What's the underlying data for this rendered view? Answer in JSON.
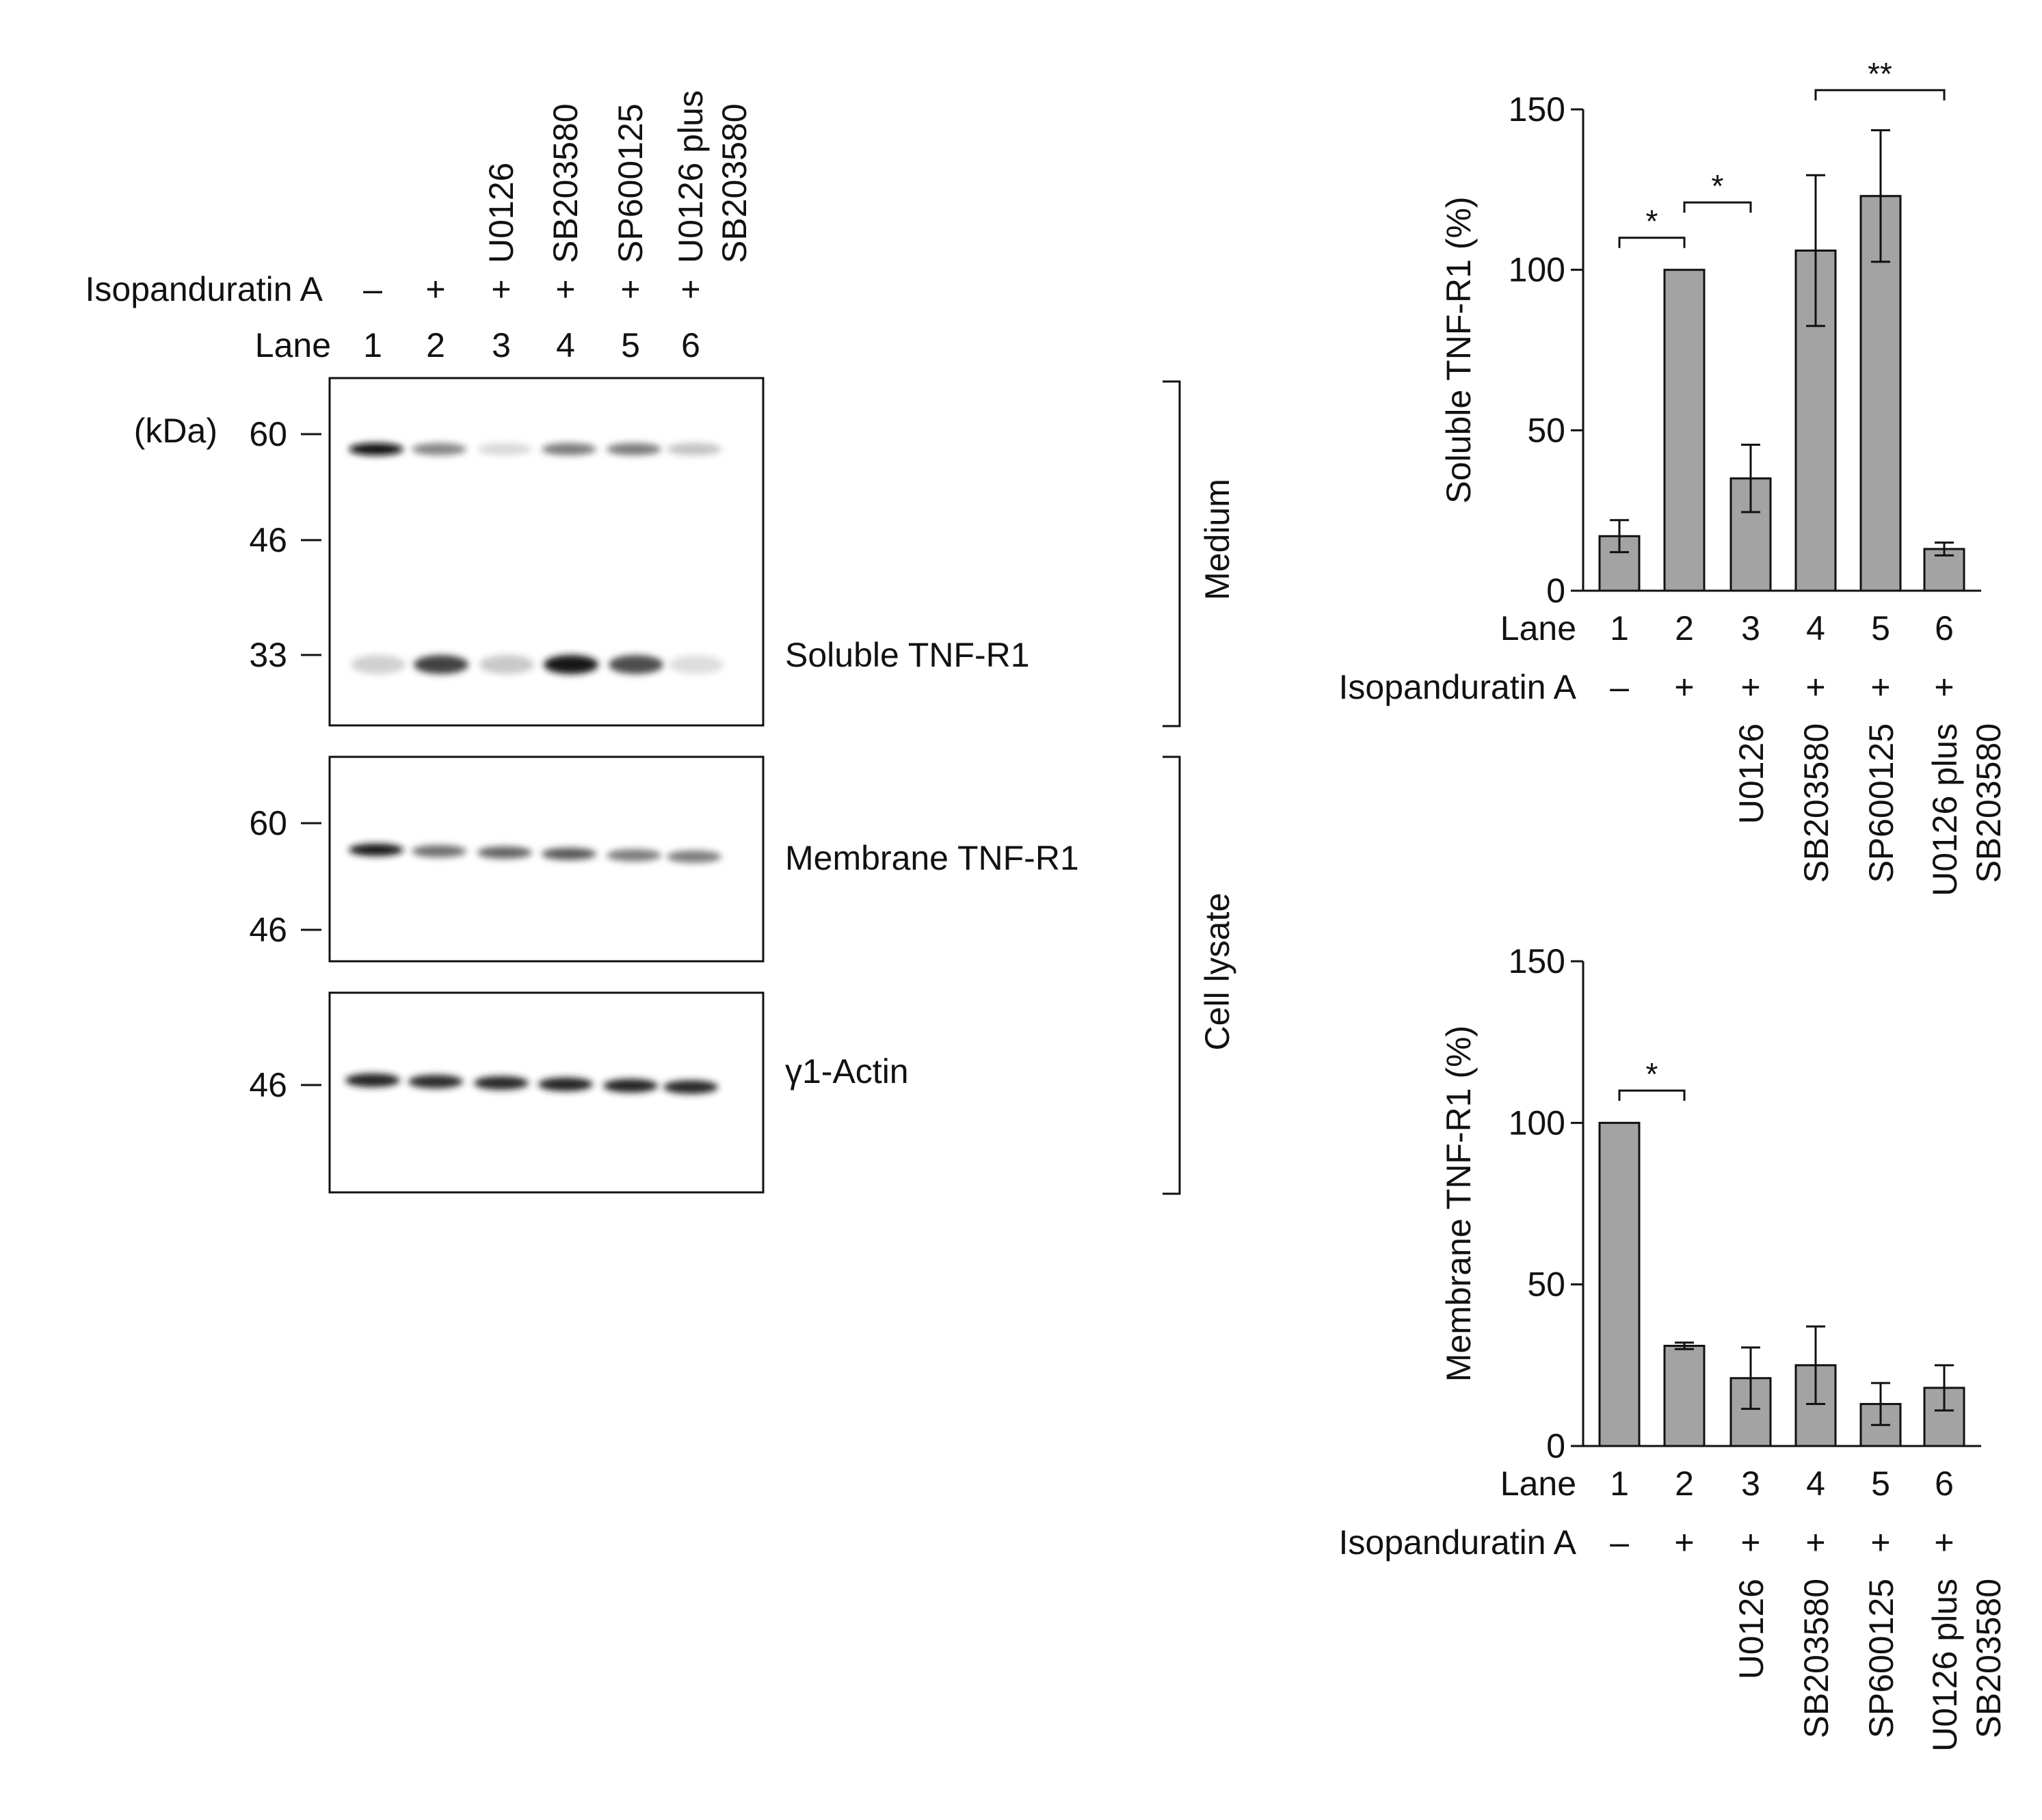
{
  "blot": {
    "treatment_label": "Isopanduratin A",
    "lane_label": "Lane",
    "kda_label": "(kDa)",
    "inhibitors": [
      "",
      "",
      "U0126",
      "SB203580",
      "SP600125",
      "U0126 plus|SB203580"
    ],
    "signs": [
      "–",
      "+",
      "+",
      "+",
      "+",
      "+"
    ],
    "lanes": [
      "1",
      "2",
      "3",
      "4",
      "5",
      "6"
    ],
    "panels": [
      {
        "label": "Soluble TNF-R1",
        "markers": [
          "60",
          "46",
          "33"
        ],
        "band_intensity": [
          1.0,
          0.45,
          0.08,
          0.5,
          0.5,
          0.18
        ],
        "low_band_intensity": [
          0.12,
          0.75,
          0.15,
          0.95,
          0.7,
          0.06
        ]
      },
      {
        "label": "Membrane TNF-R1",
        "markers": [
          "60",
          "46"
        ],
        "band_intensity": [
          0.95,
          0.55,
          0.6,
          0.65,
          0.5,
          0.5
        ]
      },
      {
        "label": "γ1-Actin",
        "markers": [
          "46"
        ],
        "band_intensity": [
          0.9,
          0.85,
          0.88,
          0.9,
          0.9,
          0.88
        ]
      }
    ],
    "brackets": [
      "Medium",
      "Cell lysate"
    ]
  },
  "chart_data": [
    {
      "type": "bar",
      "title": "",
      "xlabel": "Lane",
      "ylabel": "Soluble TNF-R1 (%)",
      "ylim": [
        0,
        150
      ],
      "yticks": [
        "0",
        "50",
        "100",
        "150"
      ],
      "categories": [
        "1",
        "2",
        "3",
        "4",
        "5",
        "6"
      ],
      "values": [
        17,
        100,
        35,
        106,
        123,
        13
      ],
      "errors": [
        5,
        0,
        10.5,
        23.5,
        20.5,
        2
      ],
      "treatment_label": "Isopanduratin A",
      "signs": [
        "–",
        "+",
        "+",
        "+",
        "+",
        "+"
      ],
      "inhibitors": [
        "",
        "",
        "U0126",
        "SB203580",
        "SP600125",
        "U0126 plus|SB203580"
      ],
      "significance": [
        {
          "from": 1,
          "to": 2,
          "label": "*",
          "at": 110
        },
        {
          "from": 2,
          "to": 3,
          "label": "*",
          "at": 121
        },
        {
          "from": 4,
          "to": 6,
          "label": "**",
          "at": 156
        }
      ],
      "bar_color": "#a3a3a3"
    },
    {
      "type": "bar",
      "title": "",
      "xlabel": "Lane",
      "ylabel": "Membrane TNF-R1 (%)",
      "ylim": [
        0,
        150
      ],
      "yticks": [
        "0",
        "50",
        "100",
        "150"
      ],
      "categories": [
        "1",
        "2",
        "3",
        "4",
        "5",
        "6"
      ],
      "values": [
        100,
        31,
        21,
        25,
        13,
        18
      ],
      "errors": [
        0,
        1,
        9.5,
        12,
        6.5,
        7
      ],
      "treatment_label": "Isopanduratin A",
      "signs": [
        "–",
        "+",
        "+",
        "+",
        "+",
        "+"
      ],
      "inhibitors": [
        "",
        "",
        "U0126",
        "SB203580",
        "SP600125",
        "U0126 plus|SB203580"
      ],
      "significance": [
        {
          "from": 1,
          "to": 2,
          "label": "*",
          "at": 110
        }
      ],
      "bar_color": "#a3a3a3"
    }
  ]
}
